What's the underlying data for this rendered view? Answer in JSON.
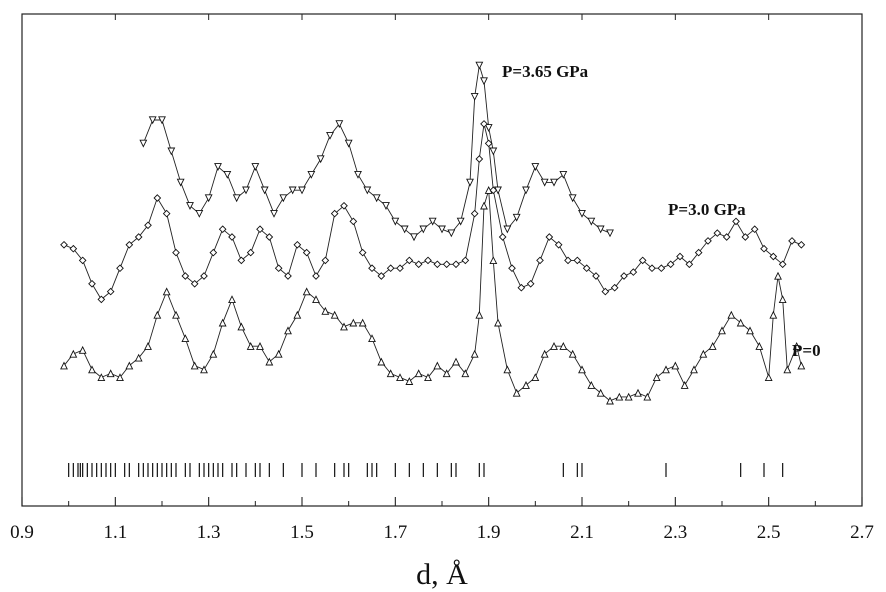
{
  "chart_data": {
    "type": "line",
    "title": "",
    "xlabel": "d, Å",
    "ylabel": "",
    "xlim": [
      0.9,
      2.7
    ],
    "x_ticks": [
      0.9,
      1.1,
      1.3,
      1.5,
      1.7,
      1.9,
      2.1,
      2.3,
      2.5,
      2.7
    ],
    "x_tick_labels": [
      "0.9",
      "1.1",
      "1.3",
      "1.5",
      "1.7",
      "1.9",
      "2.1",
      "2.3",
      "2.5",
      "2.7"
    ],
    "y_relative_range": [
      0,
      100
    ],
    "grid": false,
    "legend": "none (series labels placed next to curves)",
    "series": [
      {
        "name": "P=3.65 GPa",
        "marker": "triangle-down",
        "points": [
          [
            1.16,
            74
          ],
          [
            1.18,
            80
          ],
          [
            1.2,
            80
          ],
          [
            1.22,
            72
          ],
          [
            1.24,
            64
          ],
          [
            1.26,
            58
          ],
          [
            1.28,
            56
          ],
          [
            1.3,
            60
          ],
          [
            1.32,
            68
          ],
          [
            1.34,
            66
          ],
          [
            1.36,
            60
          ],
          [
            1.38,
            62
          ],
          [
            1.4,
            68
          ],
          [
            1.42,
            62
          ],
          [
            1.44,
            56
          ],
          [
            1.46,
            60
          ],
          [
            1.48,
            62
          ],
          [
            1.5,
            62
          ],
          [
            1.52,
            66
          ],
          [
            1.54,
            70
          ],
          [
            1.56,
            76
          ],
          [
            1.58,
            79
          ],
          [
            1.6,
            74
          ],
          [
            1.62,
            66
          ],
          [
            1.64,
            62
          ],
          [
            1.66,
            60
          ],
          [
            1.68,
            58
          ],
          [
            1.7,
            54
          ],
          [
            1.72,
            52
          ],
          [
            1.74,
            50
          ],
          [
            1.76,
            52
          ],
          [
            1.78,
            54
          ],
          [
            1.8,
            52
          ],
          [
            1.82,
            51
          ],
          [
            1.84,
            54
          ],
          [
            1.86,
            64
          ],
          [
            1.87,
            86
          ],
          [
            1.88,
            94
          ],
          [
            1.89,
            90
          ],
          [
            1.9,
            78
          ],
          [
            1.91,
            72
          ],
          [
            1.92,
            62
          ],
          [
            1.94,
            52
          ],
          [
            1.96,
            55
          ],
          [
            1.98,
            62
          ],
          [
            2.0,
            68
          ],
          [
            2.02,
            64
          ],
          [
            2.04,
            64
          ],
          [
            2.06,
            66
          ],
          [
            2.08,
            60
          ],
          [
            2.1,
            56
          ],
          [
            2.12,
            54
          ],
          [
            2.14,
            52
          ],
          [
            2.16,
            51
          ]
        ]
      },
      {
        "name": "P=3.0 GPa",
        "marker": "diamond",
        "points": [
          [
            0.99,
            48
          ],
          [
            1.01,
            47
          ],
          [
            1.03,
            44
          ],
          [
            1.05,
            38
          ],
          [
            1.07,
            34
          ],
          [
            1.09,
            36
          ],
          [
            1.11,
            42
          ],
          [
            1.13,
            48
          ],
          [
            1.15,
            50
          ],
          [
            1.17,
            53
          ],
          [
            1.19,
            60
          ],
          [
            1.21,
            56
          ],
          [
            1.23,
            46
          ],
          [
            1.25,
            40
          ],
          [
            1.27,
            38
          ],
          [
            1.29,
            40
          ],
          [
            1.31,
            46
          ],
          [
            1.33,
            52
          ],
          [
            1.35,
            50
          ],
          [
            1.37,
            44
          ],
          [
            1.39,
            46
          ],
          [
            1.41,
            52
          ],
          [
            1.43,
            50
          ],
          [
            1.45,
            42
          ],
          [
            1.47,
            40
          ],
          [
            1.49,
            48
          ],
          [
            1.51,
            46
          ],
          [
            1.53,
            40
          ],
          [
            1.55,
            44
          ],
          [
            1.57,
            56
          ],
          [
            1.59,
            58
          ],
          [
            1.61,
            54
          ],
          [
            1.63,
            46
          ],
          [
            1.65,
            42
          ],
          [
            1.67,
            40
          ],
          [
            1.69,
            42
          ],
          [
            1.71,
            42
          ],
          [
            1.73,
            44
          ],
          [
            1.75,
            43
          ],
          [
            1.77,
            44
          ],
          [
            1.79,
            43
          ],
          [
            1.81,
            43
          ],
          [
            1.83,
            43
          ],
          [
            1.85,
            44
          ],
          [
            1.87,
            56
          ],
          [
            1.88,
            70
          ],
          [
            1.89,
            79
          ],
          [
            1.9,
            74
          ],
          [
            1.91,
            62
          ],
          [
            1.93,
            50
          ],
          [
            1.95,
            42
          ],
          [
            1.97,
            37
          ],
          [
            1.99,
            38
          ],
          [
            2.01,
            44
          ],
          [
            2.03,
            50
          ],
          [
            2.05,
            48
          ],
          [
            2.07,
            44
          ],
          [
            2.09,
            44
          ],
          [
            2.11,
            42
          ],
          [
            2.13,
            40
          ],
          [
            2.15,
            36
          ],
          [
            2.17,
            37
          ],
          [
            2.19,
            40
          ],
          [
            2.21,
            41
          ],
          [
            2.23,
            44
          ],
          [
            2.25,
            42
          ],
          [
            2.27,
            42
          ],
          [
            2.29,
            43
          ],
          [
            2.31,
            45
          ],
          [
            2.33,
            43
          ],
          [
            2.35,
            46
          ],
          [
            2.37,
            49
          ],
          [
            2.39,
            51
          ],
          [
            2.41,
            50
          ],
          [
            2.43,
            54
          ],
          [
            2.45,
            50
          ],
          [
            2.47,
            52
          ],
          [
            2.49,
            47
          ],
          [
            2.51,
            45
          ],
          [
            2.53,
            43
          ],
          [
            2.55,
            49
          ],
          [
            2.57,
            48
          ]
        ]
      },
      {
        "name": "P=0",
        "marker": "triangle-up",
        "points": [
          [
            0.99,
            17
          ],
          [
            1.01,
            20
          ],
          [
            1.03,
            21
          ],
          [
            1.05,
            16
          ],
          [
            1.07,
            14
          ],
          [
            1.09,
            15
          ],
          [
            1.11,
            14
          ],
          [
            1.13,
            17
          ],
          [
            1.15,
            19
          ],
          [
            1.17,
            22
          ],
          [
            1.19,
            30
          ],
          [
            1.21,
            36
          ],
          [
            1.23,
            30
          ],
          [
            1.25,
            24
          ],
          [
            1.27,
            17
          ],
          [
            1.29,
            16
          ],
          [
            1.31,
            20
          ],
          [
            1.33,
            28
          ],
          [
            1.35,
            34
          ],
          [
            1.37,
            27
          ],
          [
            1.39,
            22
          ],
          [
            1.41,
            22
          ],
          [
            1.43,
            18
          ],
          [
            1.45,
            20
          ],
          [
            1.47,
            26
          ],
          [
            1.49,
            30
          ],
          [
            1.51,
            36
          ],
          [
            1.53,
            34
          ],
          [
            1.55,
            31
          ],
          [
            1.57,
            30
          ],
          [
            1.59,
            27
          ],
          [
            1.61,
            28
          ],
          [
            1.63,
            28
          ],
          [
            1.65,
            24
          ],
          [
            1.67,
            18
          ],
          [
            1.69,
            15
          ],
          [
            1.71,
            14
          ],
          [
            1.73,
            13
          ],
          [
            1.75,
            15
          ],
          [
            1.77,
            14
          ],
          [
            1.79,
            17
          ],
          [
            1.81,
            15
          ],
          [
            1.83,
            18
          ],
          [
            1.85,
            15
          ],
          [
            1.87,
            20
          ],
          [
            1.88,
            30
          ],
          [
            1.89,
            58
          ],
          [
            1.9,
            62
          ],
          [
            1.91,
            44
          ],
          [
            1.92,
            28
          ],
          [
            1.94,
            16
          ],
          [
            1.96,
            10
          ],
          [
            1.98,
            12
          ],
          [
            2.0,
            14
          ],
          [
            2.02,
            20
          ],
          [
            2.04,
            22
          ],
          [
            2.06,
            22
          ],
          [
            2.08,
            20
          ],
          [
            2.1,
            16
          ],
          [
            2.12,
            12
          ],
          [
            2.14,
            10
          ],
          [
            2.16,
            8
          ],
          [
            2.18,
            9
          ],
          [
            2.2,
            9
          ],
          [
            2.22,
            10
          ],
          [
            2.24,
            9
          ],
          [
            2.26,
            14
          ],
          [
            2.28,
            16
          ],
          [
            2.3,
            17
          ],
          [
            2.32,
            12
          ],
          [
            2.34,
            16
          ],
          [
            2.36,
            20
          ],
          [
            2.38,
            22
          ],
          [
            2.4,
            26
          ],
          [
            2.42,
            30
          ],
          [
            2.44,
            28
          ],
          [
            2.46,
            26
          ],
          [
            2.48,
            22
          ],
          [
            2.5,
            14
          ],
          [
            2.51,
            30
          ],
          [
            2.52,
            40
          ],
          [
            2.53,
            34
          ],
          [
            2.54,
            16
          ],
          [
            2.56,
            22
          ],
          [
            2.57,
            17
          ]
        ]
      }
    ],
    "reflection_ticks": [
      1.0,
      1.01,
      1.02,
      1.025,
      1.03,
      1.04,
      1.05,
      1.06,
      1.07,
      1.08,
      1.09,
      1.1,
      1.12,
      1.13,
      1.15,
      1.16,
      1.17,
      1.18,
      1.19,
      1.2,
      1.21,
      1.22,
      1.23,
      1.25,
      1.26,
      1.28,
      1.29,
      1.3,
      1.31,
      1.32,
      1.33,
      1.35,
      1.36,
      1.38,
      1.4,
      1.41,
      1.43,
      1.46,
      1.5,
      1.53,
      1.57,
      1.59,
      1.6,
      1.64,
      1.65,
      1.66,
      1.7,
      1.73,
      1.76,
      1.79,
      1.82,
      1.83,
      1.88,
      1.89,
      2.06,
      2.09,
      2.1,
      2.28,
      2.44,
      2.49,
      2.53
    ]
  },
  "labels": {
    "series_top": "P=3.65 GPa",
    "series_mid": "P=3.0 GPa",
    "series_bottom": "P=0",
    "x_axis_title": "d, Å"
  }
}
